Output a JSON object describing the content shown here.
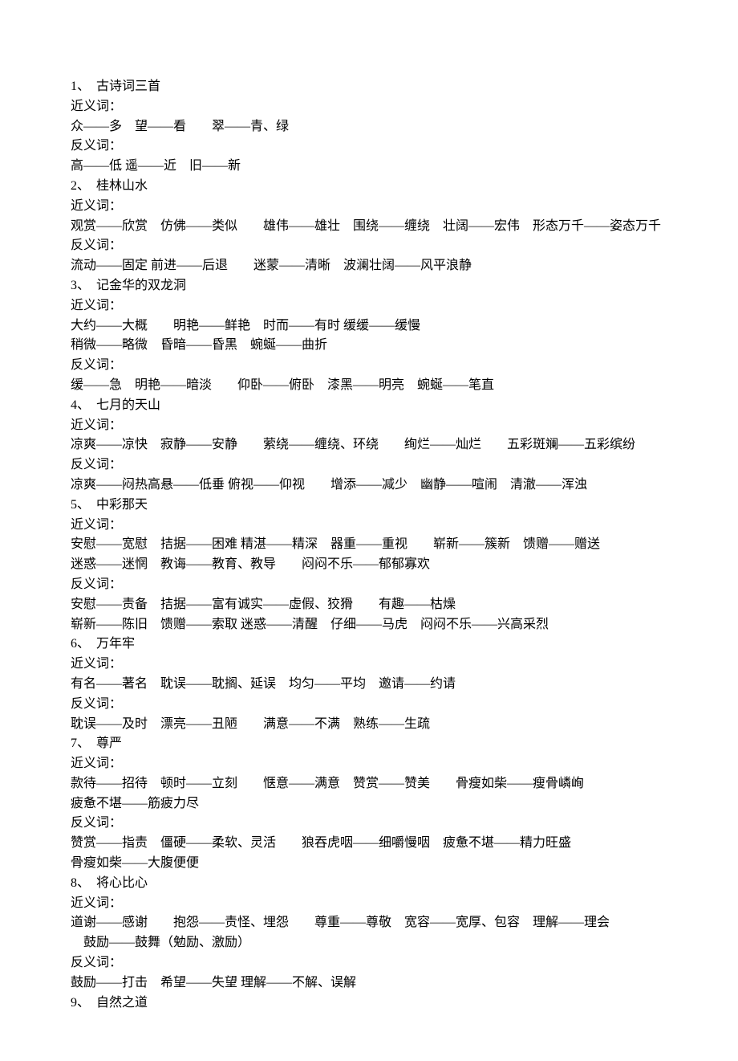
{
  "lessons": [
    {
      "num": "1、",
      "title": "古诗词三首",
      "syn_label": "近义词：",
      "syn_lines": [
        "众——多　望——看　　翠——青、绿"
      ],
      "ant_label": "反义词：",
      "ant_lines": [
        "高——低 遥——近　旧——新"
      ]
    },
    {
      "num": "2、",
      "title": "桂林山水",
      "syn_label": "近义词：",
      "syn_lines": [
        "观赏——欣赏　仿佛——类似　　雄伟——雄壮　围绕——缠绕　壮阔——宏伟　形态万千——姿态万千"
      ],
      "ant_label": "反义词：",
      "ant_lines": [
        "流动——固定 前进——后退　　迷蒙——清晰　波澜壮阔——风平浪静"
      ]
    },
    {
      "num": "3、",
      "title": "记金华的双龙洞",
      "syn_label": "近义词：",
      "syn_lines": [
        "大约——大概　　明艳——鲜艳　时而——有时 缓缓——缓慢",
        "稍微——略微　昏暗——昏黑　蜿蜒——曲折"
      ],
      "ant_label": "反义词：",
      "ant_lines": [
        "缓——急　明艳——暗淡　　仰卧——俯卧　漆黑——明亮　蜿蜒——笔直"
      ]
    },
    {
      "num": "4、",
      "title": "七月的天山",
      "syn_label": "近义词：",
      "syn_lines": [
        "凉爽——凉快　寂静——安静　　萦绕——缠绕、环绕　　绚烂——灿烂　　五彩斑斓——五彩缤纷"
      ],
      "ant_label": "反义词：",
      "ant_lines": [
        "凉爽——闷热高悬——低垂 俯视——仰视　　增添——减少　幽静——喧闹　清澈——浑浊"
      ]
    },
    {
      "num": "5、",
      "title": "中彩那天",
      "syn_label": "近义词：",
      "syn_lines": [
        "安慰——宽慰　拮据——困难 精湛——精深　器重——重视　　崭新——簇新　馈赠——赠送",
        "迷惑——迷惘　教诲——教育、教导　　闷闷不乐——郁郁寡欢"
      ],
      "ant_label": "反义词：",
      "ant_lines": [
        "安慰——责备　拮据——富有诚实——虚假、狡猾　　有趣——枯燥",
        "崭新——陈旧　馈赠——索取 迷惑——清醒　仔细——马虎　闷闷不乐——兴高采烈"
      ]
    },
    {
      "num": "6、",
      "title": "万年牢",
      "syn_label": "近义词：",
      "syn_lines": [
        "有名——著名　耽误——耽搁、延误　均匀——平均　邀请——约请"
      ],
      "ant_label": "反义词：",
      "ant_lines": [
        "耽误——及时　漂亮——丑陋　　满意——不满　熟练——生疏"
      ]
    },
    {
      "num": "7、",
      "title": "尊严",
      "syn_label": "近义词：",
      "syn_lines": [
        "款待——招待　顿时——立刻　　惬意——满意　赞赏——赞美　　骨瘦如柴——瘦骨嶙峋",
        "疲惫不堪——筋疲力尽"
      ],
      "ant_label": "反义词：",
      "ant_lines": [
        "赞赏——指责　僵硬——柔软、灵活　　狼吞虎咽——细嚼慢咽　疲惫不堪——精力旺盛",
        "骨瘦如柴——大腹便便"
      ]
    },
    {
      "num": "8、",
      "title": "将心比心",
      "syn_label": "近义词：",
      "syn_lines": [
        "道谢——感谢　　抱怨——责怪、埋怨　　尊重——尊敬　宽容——宽厚、包容　理解——理会",
        "　鼓励——鼓舞（勉励、激励）"
      ],
      "ant_label": "反义词：",
      "ant_lines": [
        "鼓励——打击　希望——失望 理解——不解、误解"
      ]
    },
    {
      "num": "9、",
      "title": "自然之道",
      "syn_label": "",
      "syn_lines": [],
      "ant_label": "",
      "ant_lines": []
    }
  ]
}
